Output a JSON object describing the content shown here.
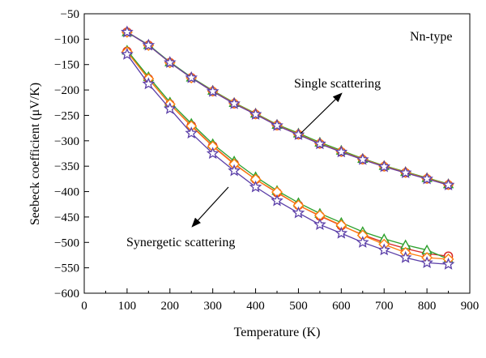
{
  "chart_data": {
    "type": "line",
    "title": "",
    "xlabel": "Temperature (K)",
    "ylabel": "Seebeck coefficient (μV/K)",
    "xlim": [
      0,
      900
    ],
    "ylim": [
      -600,
      -50
    ],
    "xticks": [
      0,
      100,
      200,
      300,
      400,
      500,
      600,
      700,
      800,
      900
    ],
    "yticks": [
      -50,
      -100,
      -150,
      -200,
      -250,
      -300,
      -350,
      -400,
      -450,
      -500,
      -550,
      -600
    ],
    "grid": false,
    "legend": "none",
    "series": [
      {
        "group": "single",
        "color": "#d62728",
        "marker": "circle",
        "x": [
          100,
          150,
          200,
          250,
          300,
          350,
          400,
          450,
          500,
          550,
          600,
          650,
          700,
          750,
          800,
          850
        ],
        "y": [
          -86,
          -112,
          -146,
          -176,
          -203,
          -227,
          -248,
          -270,
          -288,
          -306,
          -322,
          -337,
          -351,
          -363,
          -375,
          -387
        ]
      },
      {
        "group": "single",
        "color": "#2ca02c",
        "marker": "triangle",
        "x": [
          100,
          150,
          200,
          250,
          300,
          350,
          400,
          450,
          500,
          550,
          600,
          650,
          700,
          750,
          800,
          850
        ],
        "y": [
          -86,
          -111,
          -145,
          -175,
          -201,
          -225,
          -246,
          -268,
          -285,
          -303,
          -319,
          -335,
          -349,
          -361,
          -373,
          -385
        ]
      },
      {
        "group": "single",
        "color": "#ff7f0e",
        "marker": "diamond",
        "x": [
          100,
          150,
          200,
          250,
          300,
          350,
          400,
          450,
          500,
          550,
          600,
          650,
          700,
          750,
          800,
          850
        ],
        "y": [
          -86,
          -112,
          -146,
          -176,
          -202,
          -226,
          -247,
          -269,
          -287,
          -305,
          -321,
          -336,
          -350,
          -362,
          -374,
          -386
        ]
      },
      {
        "group": "single",
        "color": "#5b3fa8",
        "marker": "star",
        "x": [
          100,
          150,
          200,
          250,
          300,
          350,
          400,
          450,
          500,
          550,
          600,
          650,
          700,
          750,
          800,
          850
        ],
        "y": [
          -86,
          -112,
          -146,
          -176,
          -203,
          -227,
          -248,
          -270,
          -288,
          -306,
          -322,
          -337,
          -351,
          -363,
          -375,
          -387
        ]
      },
      {
        "group": "synergetic",
        "color": "#d62728",
        "marker": "circle",
        "x": [
          100,
          150,
          200,
          250,
          300,
          350,
          400,
          450,
          500,
          550,
          600,
          650,
          700,
          750,
          800,
          850
        ],
        "y": [
          -124,
          -178,
          -228,
          -270,
          -310,
          -345,
          -376,
          -402,
          -427,
          -448,
          -467,
          -485,
          -500,
          -512,
          -522,
          -527
        ]
      },
      {
        "group": "synergetic",
        "color": "#2ca02c",
        "marker": "triangle",
        "x": [
          100,
          150,
          200,
          250,
          300,
          350,
          400,
          450,
          500,
          550,
          600,
          650,
          700,
          750,
          800,
          850
        ],
        "y": [
          -122,
          -174,
          -224,
          -266,
          -306,
          -340,
          -371,
          -398,
          -422,
          -443,
          -461,
          -479,
          -493,
          -505,
          -515,
          -533
        ]
      },
      {
        "group": "synergetic",
        "color": "#ff7f0e",
        "marker": "diamond",
        "x": [
          100,
          150,
          200,
          250,
          300,
          350,
          400,
          450,
          500,
          550,
          600,
          650,
          700,
          750,
          800,
          850
        ],
        "y": [
          -125,
          -178,
          -228,
          -271,
          -311,
          -346,
          -376,
          -401,
          -427,
          -447,
          -466,
          -486,
          -504,
          -520,
          -530,
          -533
        ]
      },
      {
        "group": "synergetic",
        "color": "#5b3fa8",
        "marker": "star",
        "x": [
          100,
          150,
          200,
          250,
          300,
          350,
          400,
          450,
          500,
          550,
          600,
          650,
          700,
          750,
          800,
          850
        ],
        "y": [
          -130,
          -188,
          -237,
          -285,
          -325,
          -359,
          -391,
          -418,
          -442,
          -465,
          -482,
          -500,
          -515,
          -530,
          -540,
          -543
        ]
      }
    ],
    "annotations": {
      "type_label": "Nn-type",
      "single_label": "Single scattering",
      "synergetic_label": "Synergetic scattering"
    }
  }
}
